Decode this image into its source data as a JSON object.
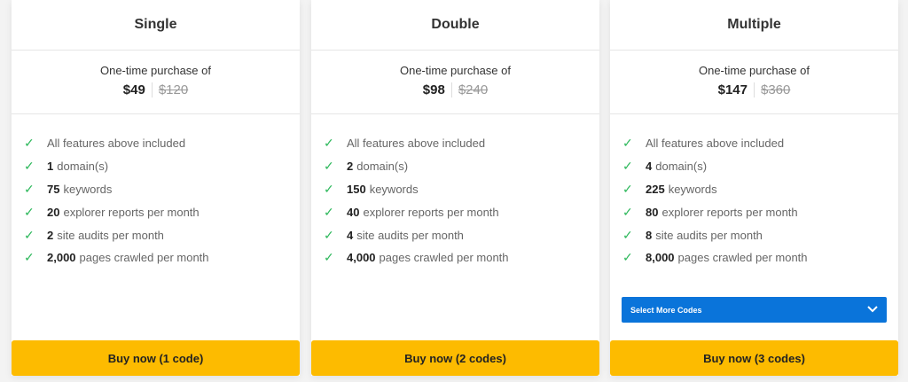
{
  "colors": {
    "accent_button": "#fdbb00",
    "select": "#0a74da",
    "check": "#2eb85c"
  },
  "icons": {
    "feature": "check-icon",
    "select": "chevron-down-icon"
  },
  "plans": [
    {
      "name": "Single",
      "purchase_label": "One-time purchase of",
      "price": "$49",
      "old_price": "$120",
      "features": [
        {
          "bold": "",
          "text": "All features above included"
        },
        {
          "bold": "1",
          "text": "domain(s)"
        },
        {
          "bold": "75",
          "text": "keywords"
        },
        {
          "bold": "20",
          "text": "explorer reports per month"
        },
        {
          "bold": "2",
          "text": "site audits per month"
        },
        {
          "bold": "2,000",
          "text": "pages crawled per month"
        }
      ],
      "button": "Buy now (1 code)"
    },
    {
      "name": "Double",
      "purchase_label": "One-time purchase of",
      "price": "$98",
      "old_price": "$240",
      "features": [
        {
          "bold": "",
          "text": "All features above included"
        },
        {
          "bold": "2",
          "text": "domain(s)"
        },
        {
          "bold": "150",
          "text": "keywords"
        },
        {
          "bold": "40",
          "text": "explorer reports per month"
        },
        {
          "bold": "4",
          "text": "site audits per month"
        },
        {
          "bold": "4,000",
          "text": "pages crawled per month"
        }
      ],
      "button": "Buy now (2 codes)"
    },
    {
      "name": "Multiple",
      "purchase_label": "One-time purchase of",
      "price": "$147",
      "old_price": "$360",
      "features": [
        {
          "bold": "",
          "text": "All features above included"
        },
        {
          "bold": "4",
          "text": "domain(s)"
        },
        {
          "bold": "225",
          "text": "keywords"
        },
        {
          "bold": "80",
          "text": "explorer reports per month"
        },
        {
          "bold": "8",
          "text": "site audits per month"
        },
        {
          "bold": "8,000",
          "text": "pages crawled per month"
        }
      ],
      "select": "Select More Codes",
      "button": "Buy now (3 codes)"
    }
  ]
}
